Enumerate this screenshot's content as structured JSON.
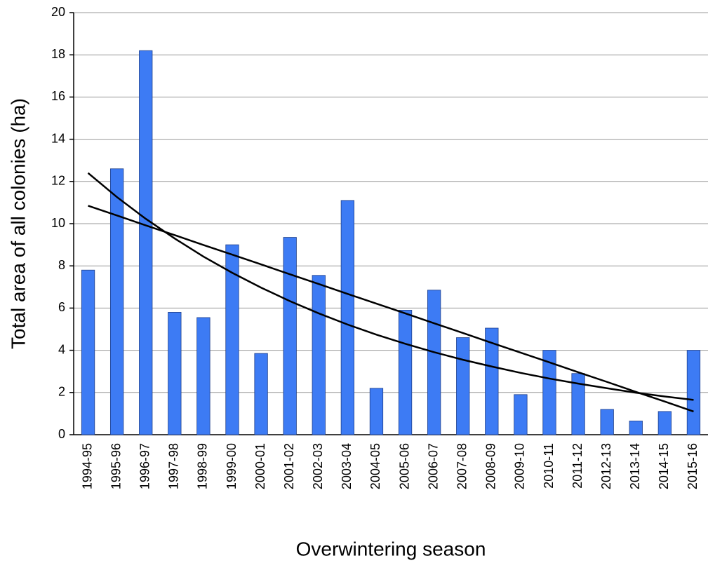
{
  "chart_data": {
    "type": "bar",
    "x_label": "Overwintering season",
    "y_label": "Total area of all colonies (ha)",
    "categories": [
      "1994-95",
      "1995-96",
      "1996-97",
      "1997-98",
      "1998-99",
      "1999-00",
      "2000-01",
      "2001-02",
      "2002-03",
      "2003-04",
      "2004-05",
      "2005-06",
      "2006-07",
      "2007-08",
      "2008-09",
      "2009-10",
      "2010-11",
      "2011-12",
      "2012-13",
      "2013-14",
      "2014-15",
      "2015-16"
    ],
    "series": [
      {
        "type": "bar",
        "color": "#3d7bf4",
        "values": [
          7.8,
          12.6,
          18.2,
          5.8,
          5.55,
          9.0,
          3.85,
          9.35,
          7.55,
          11.1,
          2.2,
          5.9,
          6.85,
          4.6,
          5.05,
          1.9,
          4.0,
          2.9,
          1.2,
          0.65,
          1.1,
          4.0
        ]
      },
      {
        "type": "line",
        "color": "#000000",
        "values": [
          10.85,
          10.39,
          9.92,
          9.46,
          8.99,
          8.53,
          8.07,
          7.6,
          7.14,
          6.67,
          6.21,
          5.75,
          5.28,
          4.82,
          4.35,
          3.89,
          3.43,
          2.96,
          2.5,
          2.03,
          1.57,
          1.1
        ]
      },
      {
        "type": "line",
        "color": "#000000",
        "values": [
          12.4,
          11.26,
          10.23,
          9.3,
          8.44,
          7.67,
          6.97,
          6.33,
          5.75,
          5.22,
          4.74,
          4.31,
          3.91,
          3.55,
          3.23,
          2.93,
          2.66,
          2.42,
          2.2,
          1.99,
          1.81,
          1.65
        ]
      }
    ],
    "ylim": [
      0,
      20
    ],
    "yticks": [
      0,
      2,
      4,
      6,
      8,
      10,
      12,
      14,
      16,
      18,
      20
    ],
    "grid": true
  }
}
